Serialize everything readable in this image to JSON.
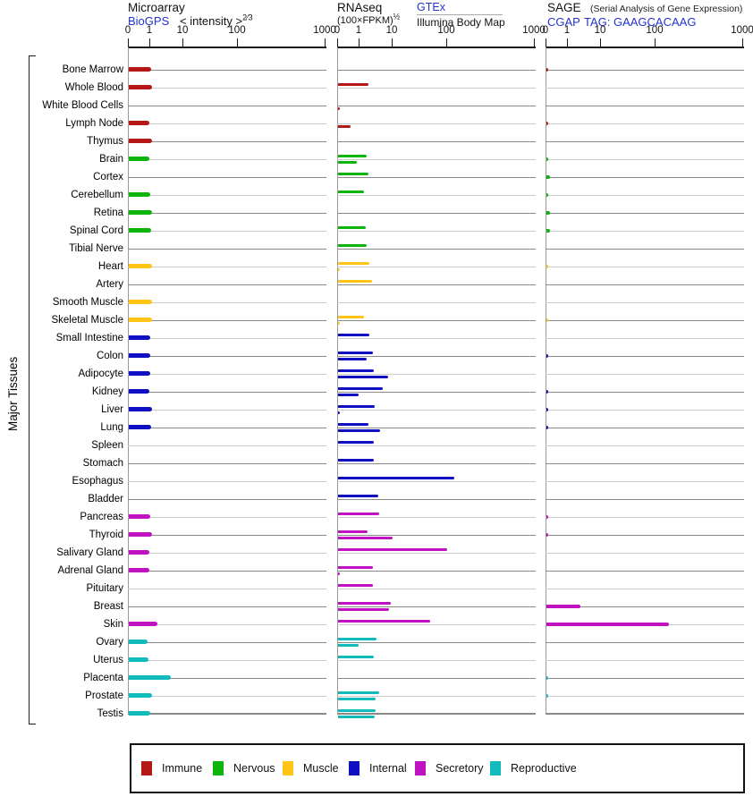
{
  "sidebar_label": "Major Tissues",
  "panels": {
    "microarray": {
      "title": "Microarray",
      "source_link": "BioGPS",
      "axis_label": "< intensity >",
      "axis_exponent": "2⁄3"
    },
    "rnaseq": {
      "title": "RNAseq",
      "axis_label": "(100×FPKM)",
      "axis_exponent": "½",
      "source_link": "GTEx",
      "source_secondary": "Illumina Body Map"
    },
    "sage": {
      "title": "SAGE",
      "subtitle": "(Serial Analysis of Gene Expression)",
      "source_link": "CGAP",
      "tag_label": "TAG: GAAGCACAAG"
    }
  },
  "legend": {
    "items": [
      {
        "label": "Immune",
        "color": "#b51616"
      },
      {
        "label": "Nervous",
        "color": "#0cb40c"
      },
      {
        "label": "Muscle",
        "color": "#ffc414"
      },
      {
        "label": "Internal",
        "color": "#0f10c2"
      },
      {
        "label": "Secretory",
        "color": "#c012c0"
      },
      {
        "label": "Reproductive",
        "color": "#12bcbc"
      }
    ]
  },
  "chart_data": {
    "type": "bar",
    "orientation": "horizontal",
    "x_ticks": [
      0,
      1,
      10,
      100,
      1000
    ],
    "x_scale_note": "shared nonlinear intensity axis per panel (0,1,10,100,1000)",
    "row_axis_label": "Major Tissues",
    "categories": [
      "Bone Marrow",
      "Whole Blood",
      "White Blood Cells",
      "Lymph Node",
      "Thymus",
      "Brain",
      "Cortex",
      "Cerebellum",
      "Retina",
      "Spinal Cord",
      "Tibial Nerve",
      "Heart",
      "Artery",
      "Smooth Muscle",
      "Skeletal Muscle",
      "Small Intestine",
      "Colon",
      "Adipocyte",
      "Kidney",
      "Liver",
      "Lung",
      "Spleen",
      "Stomach",
      "Esophagus",
      "Bladder",
      "Pancreas",
      "Thyroid",
      "Salivary Gland",
      "Adrenal Gland",
      "Pituitary",
      "Breast",
      "Skin",
      "Ovary",
      "Uterus",
      "Placenta",
      "Prostate",
      "Testis"
    ],
    "tissue_category": [
      "immune",
      "immune",
      "immune",
      "immune",
      "immune",
      "nervous",
      "nervous",
      "nervous",
      "nervous",
      "nervous",
      "nervous",
      "muscle",
      "muscle",
      "muscle",
      "muscle",
      "internal",
      "internal",
      "internal",
      "internal",
      "internal",
      "internal",
      "internal",
      "internal",
      "internal",
      "internal",
      "secretory",
      "secretory",
      "secretory",
      "secretory",
      "secretory",
      "secretory",
      "secretory",
      "reproductive",
      "reproductive",
      "reproductive",
      "reproductive",
      "reproductive"
    ],
    "category_colors": {
      "immune": "#b51616",
      "nervous": "#0cb40c",
      "muscle": "#ffc414",
      "internal": "#0f10c2",
      "secretory": "#c012c0",
      "reproductive": "#12bcbc"
    },
    "series": [
      {
        "name": "Microarray (BioGPS)",
        "panel": "microarray",
        "values": [
          1.05,
          1.1,
          0,
          0.95,
          1.1,
          0.95,
          0,
          1.0,
          1.1,
          1.05,
          0,
          1.15,
          0,
          1.1,
          1.15,
          1.0,
          1.0,
          1.0,
          0.95,
          1.1,
          1.05,
          0,
          0,
          0,
          0,
          1.0,
          1.1,
          0.95,
          0.95,
          0,
          0,
          1.6,
          0.88,
          0.92,
          4.1,
          1.1,
          1.0
        ]
      },
      {
        "name": "RNAseq GTEx",
        "panel": "rnaseq",
        "values": [
          0,
          1.9,
          0,
          0,
          0,
          1.65,
          1.85,
          1.35,
          0,
          1.55,
          1.65,
          1.95,
          2.4,
          0,
          1.4,
          2.0,
          2.5,
          2.7,
          5.0,
          2.9,
          1.85,
          2.65,
          2.65,
          120,
          3.7,
          3.9,
          1.7,
          100,
          2.5,
          2.55,
          8.8,
          49,
          3.3,
          2.7,
          0,
          3.9,
          3.1
        ]
      },
      {
        "name": "RNAseq Illumina Body Map",
        "panel": "rnaseq",
        "values": [
          0,
          0,
          0.08,
          0.58,
          0,
          0.87,
          0,
          0,
          0,
          0,
          0,
          0.08,
          0,
          0,
          0.05,
          0,
          1.6,
          7.3,
          0.96,
          0.08,
          4.2,
          0,
          0,
          0,
          0,
          0,
          9.7,
          0,
          0.07,
          0,
          7.8,
          0,
          0.96,
          0,
          0,
          3.1,
          2.9
        ]
      },
      {
        "name": "SAGE (CGAP)",
        "panel": "sage",
        "values": [
          0.08,
          0,
          0,
          0.08,
          0,
          0.08,
          0.15,
          0.08,
          0.15,
          0.15,
          0,
          0.08,
          0,
          0,
          0.1,
          0,
          0.1,
          0,
          0.1,
          0.1,
          0.1,
          0,
          0,
          0,
          0,
          0.08,
          0.08,
          0,
          0,
          0,
          2.4,
          142,
          0,
          0,
          0.1,
          0.1,
          0
        ]
      }
    ]
  }
}
